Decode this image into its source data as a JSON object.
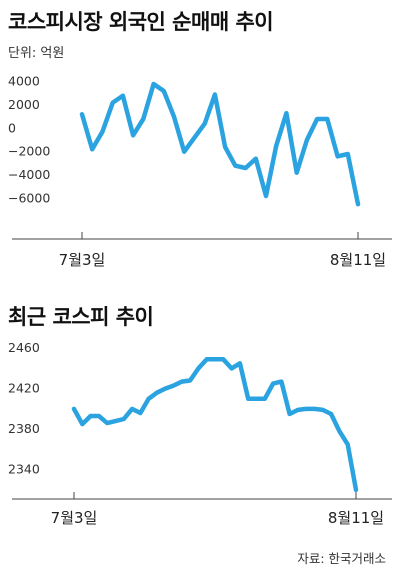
{
  "chart_data": [
    {
      "type": "line",
      "title": "코스피시장 외국인 순매매 추이",
      "unit": "단위: 억원",
      "color": "#2ba3e0",
      "ylim": [
        -7000,
        5000
      ],
      "yticks": [
        4000,
        2000,
        0,
        -2000,
        -4000,
        -6000
      ],
      "xtick_labels": [
        "7월3일",
        "8월11일"
      ],
      "values": [
        1200,
        -1800,
        -300,
        2200,
        2800,
        -600,
        800,
        3800,
        3200,
        1000,
        -2000,
        -800,
        400,
        2900,
        -1600,
        -3200,
        -3400,
        -2600,
        -5800,
        -1500,
        1300,
        -3800,
        -1000,
        800,
        800,
        -2400,
        -2200,
        -6500
      ]
    },
    {
      "type": "line",
      "title": "최근 코스피 추이",
      "source": "자료: 한국거래소",
      "color": "#2ba3e0",
      "ylim": [
        2315,
        2470
      ],
      "yticks": [
        2460,
        2420,
        2380,
        2340
      ],
      "xtick_labels": [
        "7월3일",
        "8월11일"
      ],
      "values": [
        2400,
        2385,
        2393,
        2393,
        2386,
        2388,
        2390,
        2400,
        2396,
        2410,
        2416,
        2420,
        2423,
        2427,
        2428,
        2440,
        2449,
        2449,
        2449,
        2440,
        2445,
        2410,
        2410,
        2410,
        2425,
        2427,
        2395,
        2399,
        2400,
        2400,
        2399,
        2395,
        2378,
        2365,
        2320
      ]
    }
  ]
}
